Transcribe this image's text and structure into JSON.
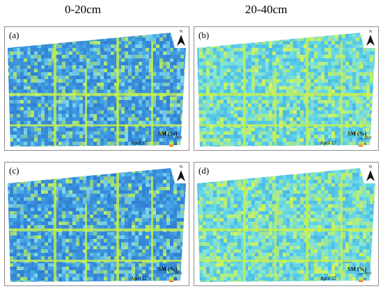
{
  "columns": [
    "0-20cm",
    "20-40cm"
  ],
  "panels": [
    {
      "label": "(a)",
      "date": "April 17",
      "scheme": "blue"
    },
    {
      "label": "(b)",
      "date": "April 17",
      "scheme": "cyan"
    },
    {
      "label": "(c)",
      "date": "April 22",
      "scheme": "blue"
    },
    {
      "label": "(d)",
      "date": "April 22",
      "scheme": "cyan"
    }
  ],
  "north_label": "N",
  "legend": {
    "title": "SM (%)",
    "max": "20.0",
    "min": "0"
  },
  "colors": {
    "blue_base": "#3a8fd9",
    "cyan_base": "#5fd0e6",
    "dry": "#c8f04a",
    "border": "#8c8c8c"
  }
}
